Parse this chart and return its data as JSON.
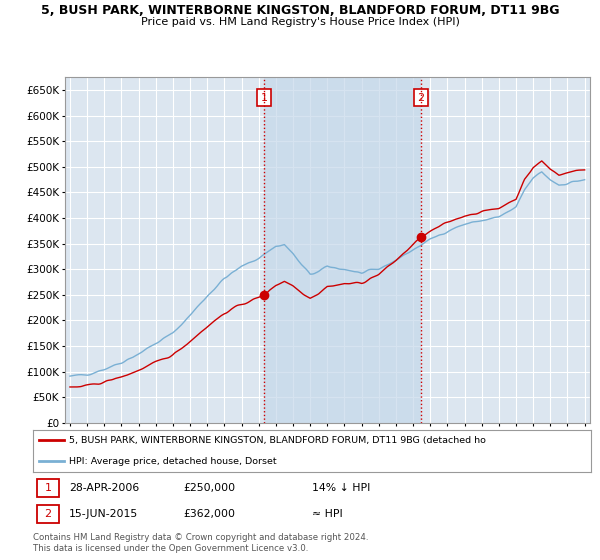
{
  "title_line1": "5, BUSH PARK, WINTERBORNE KINGSTON, BLANDFORD FORUM, DT11 9BG",
  "title_line2": "Price paid vs. HM Land Registry's House Price Index (HPI)",
  "ytick_values": [
    0,
    50000,
    100000,
    150000,
    200000,
    250000,
    300000,
    350000,
    400000,
    450000,
    500000,
    550000,
    600000,
    650000
  ],
  "ylabel_ticks": [
    "£0",
    "£50K",
    "£100K",
    "£150K",
    "£200K",
    "£250K",
    "£300K",
    "£350K",
    "£400K",
    "£450K",
    "£500K",
    "£550K",
    "£600K",
    "£650K"
  ],
  "xlim_min": 1994.7,
  "xlim_max": 2025.3,
  "ylim_min": 0,
  "ylim_max": 675000,
  "sale1_year": 2006.32,
  "sale1_price": 250000,
  "sale2_year": 2015.45,
  "sale2_price": 362000,
  "red_color": "#cc0000",
  "blue_color": "#7ab0d4",
  "shade_color": "#c5d8ea",
  "bg_color": "#dce6f0",
  "grid_color": "#ffffff",
  "legend_red": "5, BUSH PARK, WINTERBORNE KINGSTON, BLANDFORD FORUM, DT11 9BG (detached ho",
  "legend_blue": "HPI: Average price, detached house, Dorset",
  "footer": "Contains HM Land Registry data © Crown copyright and database right 2024.\nThis data is licensed under the Open Government Licence v3.0."
}
